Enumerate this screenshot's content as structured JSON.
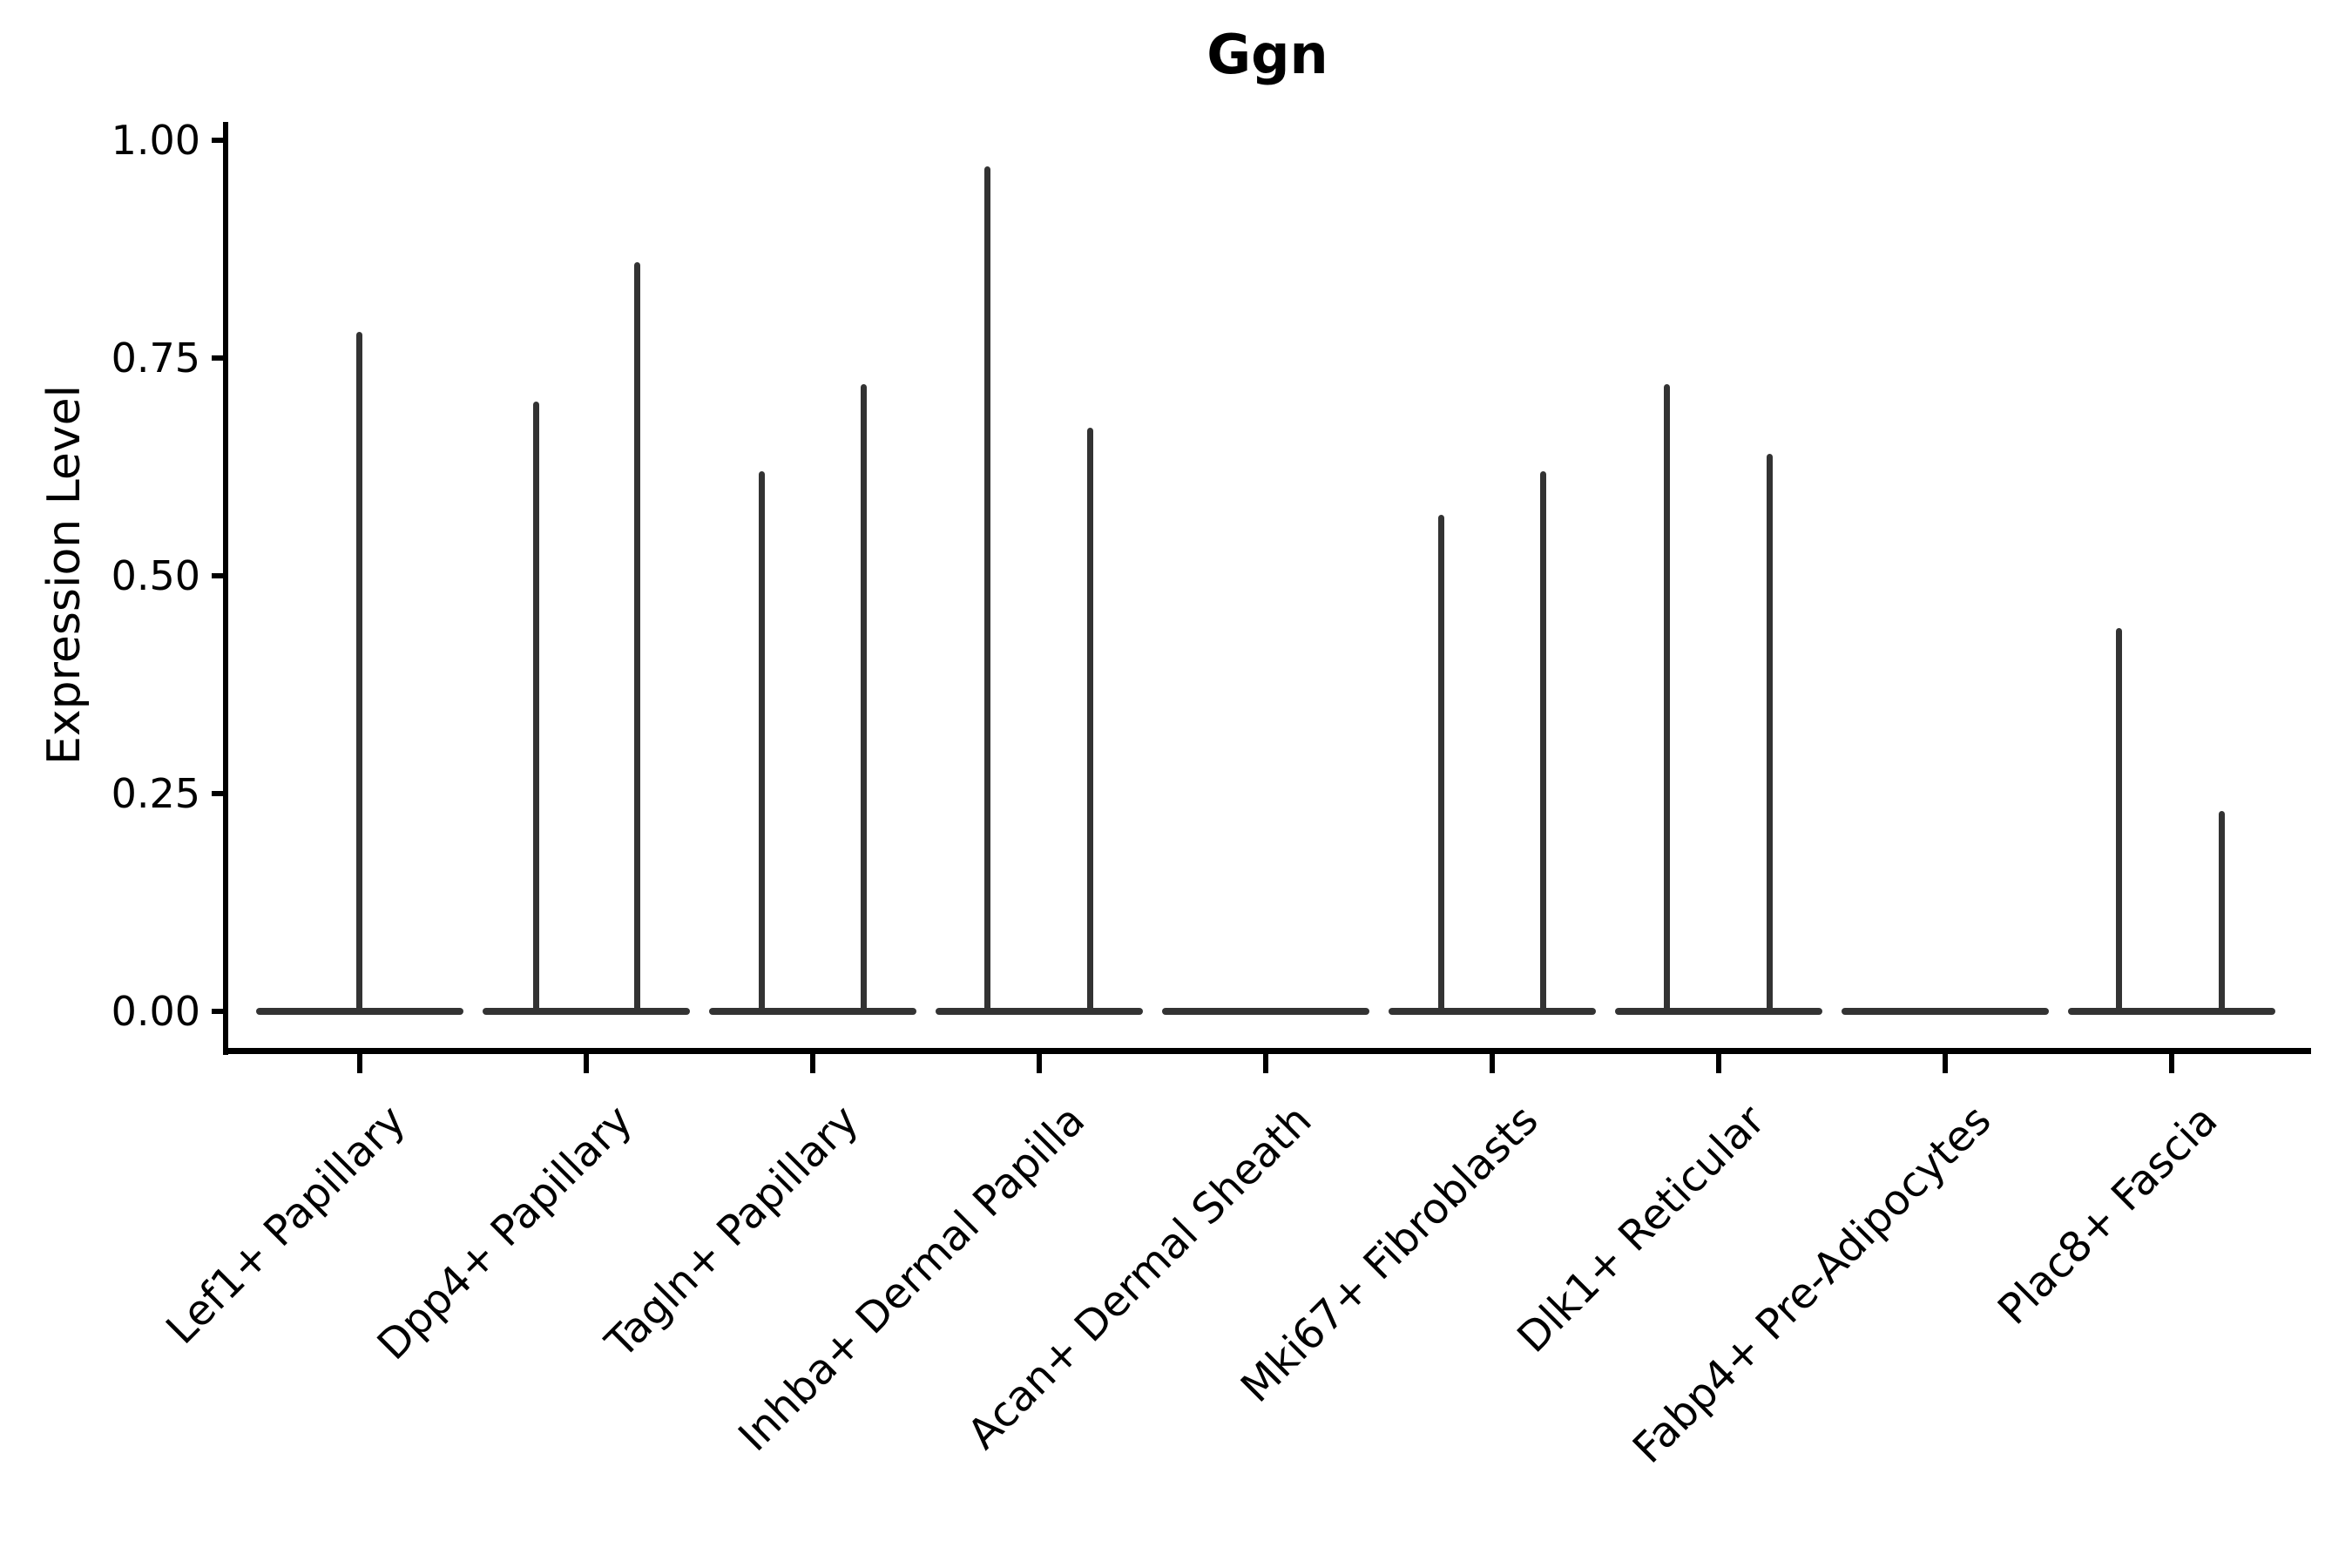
{
  "chart_data": {
    "type": "violin",
    "title": "Ggn",
    "ylabel": "Expression Level",
    "xlabel": "",
    "ylim": [
      0,
      1.0
    ],
    "grid": false,
    "legend": "none",
    "yticks": [
      {
        "label": "0.00",
        "value": 0.0
      },
      {
        "label": "0.25",
        "value": 0.25
      },
      {
        "label": "0.50",
        "value": 0.5
      },
      {
        "label": "0.75",
        "value": 0.75
      },
      {
        "label": "1.00",
        "value": 1.0
      }
    ],
    "categories": [
      "Lef1+ Papillary",
      "Dpp4+ Papillary",
      "Tagln+ Papillary",
      "Inhba+ Dermal Papilla",
      "Acan+ Dermal Sheath",
      "Mki67+ Fibroblasts",
      "Dlk1+ Reticular",
      "Fabp4+ Pre-Adipocytes",
      "Plac8+ Fascia"
    ],
    "violins": [
      {
        "label": "Lef1+ Papillary",
        "base_at_zero": true,
        "spikes": [
          {
            "offset": 0,
            "max": 0.78
          }
        ]
      },
      {
        "label": "Dpp4+ Papillary",
        "base_at_zero": true,
        "spikes": [
          {
            "offset": -57,
            "max": 0.7
          },
          {
            "offset": 59,
            "max": 0.86
          }
        ]
      },
      {
        "label": "Tagln+ Papillary",
        "base_at_zero": true,
        "spikes": [
          {
            "offset": -58,
            "max": 0.62
          },
          {
            "offset": 59,
            "max": 0.72
          }
        ]
      },
      {
        "label": "Inhba+ Dermal Papilla",
        "base_at_zero": true,
        "spikes": [
          {
            "offset": -59,
            "max": 0.97
          },
          {
            "offset": 59,
            "max": 0.67
          }
        ]
      },
      {
        "label": "Acan+ Dermal Sheath",
        "base_at_zero": true,
        "spikes": []
      },
      {
        "label": "Mki67+ Fibroblasts",
        "base_at_zero": true,
        "spikes": [
          {
            "offset": -58,
            "max": 0.57
          },
          {
            "offset": 59,
            "max": 0.62
          }
        ]
      },
      {
        "label": "Dlk1+ Reticular",
        "base_at_zero": true,
        "spikes": [
          {
            "offset": -59,
            "max": 0.72
          },
          {
            "offset": 59,
            "max": 0.64
          }
        ]
      },
      {
        "label": "Fabp4+ Pre-Adipocytes",
        "base_at_zero": true,
        "spikes": []
      },
      {
        "label": "Plac8+ Fascia",
        "base_at_zero": true,
        "spikes": [
          {
            "offset": -60,
            "max": 0.44
          },
          {
            "offset": 58,
            "max": 0.23
          }
        ]
      }
    ],
    "colors": {
      "violin_line": "#333333",
      "axis": "#000000",
      "text": "#000000",
      "background": "#ffffff"
    }
  }
}
